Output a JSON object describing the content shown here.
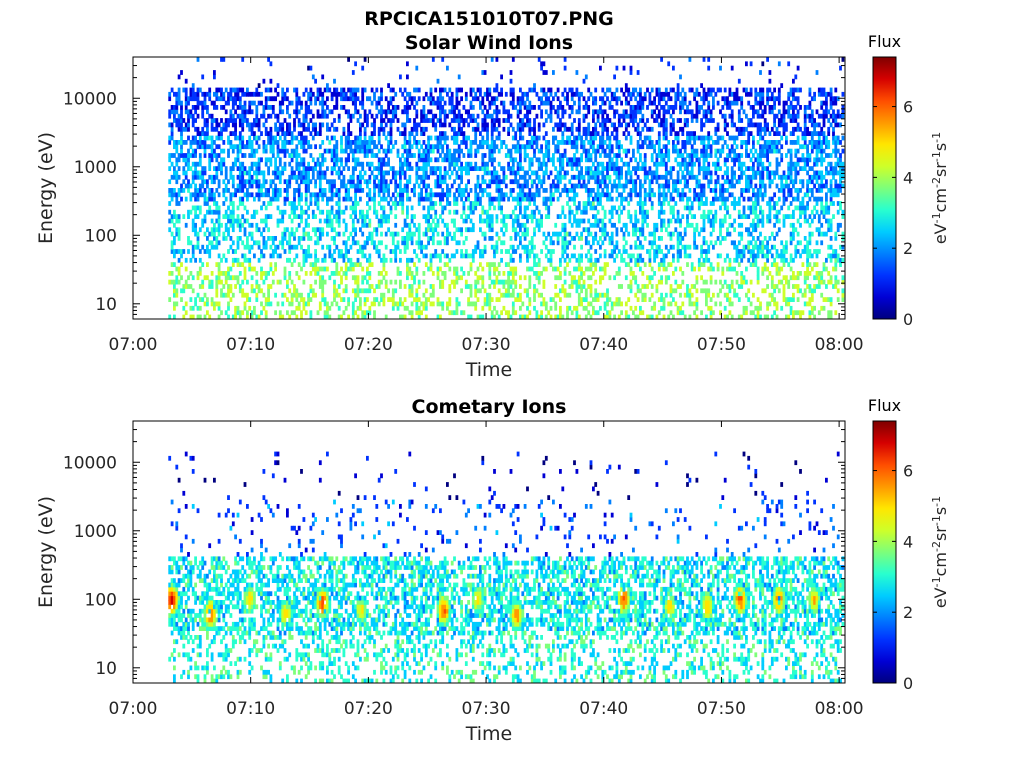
{
  "figure": {
    "filename_title": "RPCICA151010T07.PNG"
  },
  "colormap": [
    "#00007f",
    "#0000d4",
    "#0033ff",
    "#0080ff",
    "#00ccff",
    "#29ffce",
    "#7dff7a",
    "#ceff29",
    "#ffe600",
    "#ff9900",
    "#ff4d00",
    "#d40000",
    "#7f0000"
  ],
  "chart_data": [
    {
      "type": "heatmap",
      "title": "Solar Wind Ions",
      "xlabel": "Time",
      "ylabel": "Energy (eV)",
      "x_ticks": [
        "07:00",
        "07:10",
        "07:20",
        "07:30",
        "07:40",
        "07:50",
        "08:00"
      ],
      "x_range_minutes": [
        0,
        60.5
      ],
      "data_start_minute": 3,
      "y_scale": "log",
      "y_range": [
        6,
        40000
      ],
      "y_ticks": [
        10,
        100,
        1000,
        10000
      ],
      "y_tick_labels": [
        "10",
        "100",
        "1000",
        "10000"
      ],
      "colorbar": {
        "label": "Flux",
        "unit_label": "eV-1cm-2sr-1s-1",
        "range": [
          0,
          7.4
        ],
        "ticks": [
          0,
          2,
          4,
          6
        ],
        "tick_labels": [
          "0",
          "2",
          "4",
          "6"
        ]
      },
      "energy_bands": [
        {
          "energy_range": [
            6,
            40
          ],
          "flux_typical": 3.8,
          "coverage": 0.35
        },
        {
          "energy_range": [
            40,
            300
          ],
          "flux_typical": 2.6,
          "coverage": 0.4
        },
        {
          "energy_range": [
            300,
            3000
          ],
          "flux_typical": 2.0,
          "coverage": 0.55
        },
        {
          "energy_range": [
            3000,
            15000
          ],
          "flux_typical": 1.2,
          "coverage": 0.5
        },
        {
          "energy_range": [
            15000,
            40000
          ],
          "flux_typical": 1.0,
          "coverage": 0.05
        }
      ],
      "peaks": []
    },
    {
      "type": "heatmap",
      "title": "Cometary Ions",
      "xlabel": "Time",
      "ylabel": "Energy (eV)",
      "x_ticks": [
        "07:00",
        "07:10",
        "07:20",
        "07:30",
        "07:40",
        "07:50",
        "08:00"
      ],
      "x_range_minutes": [
        0,
        60.5
      ],
      "data_start_minute": 3,
      "y_scale": "log",
      "y_range": [
        6,
        40000
      ],
      "y_ticks": [
        10,
        100,
        1000,
        10000
      ],
      "y_tick_labels": [
        "10",
        "100",
        "1000",
        "10000"
      ],
      "colorbar": {
        "label": "Flux",
        "unit_label": "eV-1cm-2sr-1s-1",
        "range": [
          0,
          7.4
        ],
        "ticks": [
          0,
          2,
          4,
          6
        ],
        "tick_labels": [
          "0",
          "2",
          "4",
          "6"
        ]
      },
      "energy_bands": [
        {
          "energy_range": [
            6,
            30
          ],
          "flux_typical": 3.0,
          "coverage": 0.3
        },
        {
          "energy_range": [
            30,
            400
          ],
          "flux_typical": 2.8,
          "coverage": 0.55
        },
        {
          "energy_range": [
            400,
            3000
          ],
          "flux_typical": 1.5,
          "coverage": 0.08
        },
        {
          "energy_range": [
            3000,
            15000
          ],
          "flux_typical": 0.5,
          "coverage": 0.03
        }
      ],
      "peaks": [
        {
          "minute": 3.2,
          "energy": 100,
          "flux": 6.8
        },
        {
          "minute": 6.5,
          "energy": 60,
          "flux": 6.0
        },
        {
          "minute": 9.8,
          "energy": 100,
          "flux": 5.0
        },
        {
          "minute": 12.9,
          "energy": 60,
          "flux": 5.2
        },
        {
          "minute": 16.0,
          "energy": 90,
          "flux": 6.2
        },
        {
          "minute": 19.3,
          "energy": 70,
          "flux": 4.8
        },
        {
          "minute": 26.3,
          "energy": 70,
          "flux": 6.0
        },
        {
          "minute": 29.2,
          "energy": 100,
          "flux": 4.8
        },
        {
          "minute": 32.5,
          "energy": 60,
          "flux": 5.6
        },
        {
          "minute": 41.6,
          "energy": 100,
          "flux": 6.0
        },
        {
          "minute": 45.5,
          "energy": 80,
          "flux": 5.0
        },
        {
          "minute": 48.7,
          "energy": 80,
          "flux": 5.2
        },
        {
          "minute": 51.5,
          "energy": 100,
          "flux": 6.2
        },
        {
          "minute": 54.8,
          "energy": 100,
          "flux": 5.8
        },
        {
          "minute": 57.8,
          "energy": 100,
          "flux": 5.2
        }
      ]
    }
  ]
}
